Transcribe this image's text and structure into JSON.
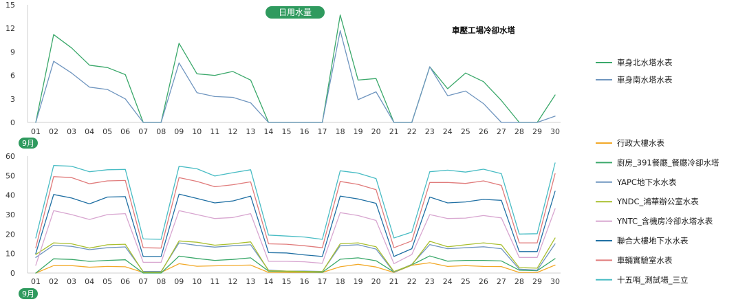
{
  "header_badge": "日用水量",
  "chart_data": [
    {
      "type": "line",
      "title": "車壓工場冷卻水塔",
      "month_label": "9月",
      "categories": [
        "01",
        "02",
        "03",
        "04",
        "05",
        "06",
        "07",
        "08",
        "09",
        "10",
        "11",
        "12",
        "13",
        "14",
        "15",
        "16",
        "17",
        "18",
        "19",
        "20",
        "21",
        "22",
        "23",
        "24",
        "25",
        "26",
        "27",
        "28",
        "29",
        "30"
      ],
      "ylim": [
        0,
        15
      ],
      "yticks": [
        0,
        3,
        6,
        9,
        12,
        15
      ],
      "series": [
        {
          "name": "車身北水塔水表",
          "color": "#3aa86a",
          "values": [
            0,
            11.2,
            9.5,
            7.3,
            7,
            6.1,
            0,
            0,
            10.1,
            6.2,
            6,
            6.5,
            5.4,
            0,
            0,
            0,
            0,
            13.7,
            5.4,
            5.6,
            0,
            0,
            7.1,
            4.3,
            6.3,
            5.2,
            2.8,
            0,
            0,
            3.5
          ]
        },
        {
          "name": "車身南水塔水表",
          "color": "#6f95bf",
          "values": [
            0,
            7.8,
            6.3,
            4.5,
            4.2,
            3,
            0,
            0,
            7.6,
            3.8,
            3.3,
            3.2,
            2.5,
            0,
            0,
            0,
            0,
            11.7,
            2.9,
            3.9,
            0,
            0,
            7.1,
            3.4,
            4,
            2.4,
            0,
            0,
            0,
            0.8
          ]
        }
      ]
    },
    {
      "type": "line",
      "title": "",
      "month_label": "9月",
      "categories": [
        "01",
        "02",
        "03",
        "04",
        "05",
        "06",
        "07",
        "08",
        "09",
        "10",
        "11",
        "12",
        "13",
        "14",
        "15",
        "16",
        "17",
        "18",
        "19",
        "20",
        "21",
        "22",
        "23",
        "24",
        "25",
        "26",
        "27",
        "28",
        "29",
        "30"
      ],
      "ylim": [
        0,
        60
      ],
      "yticks": [
        0,
        10,
        20,
        30,
        40,
        50,
        60
      ],
      "series": [
        {
          "name": "行政大樓水表",
          "color": "#f2a928",
          "values": [
            0,
            3.8,
            3.8,
            3,
            3.4,
            3.2,
            0.3,
            0.3,
            4.8,
            3.5,
            3.7,
            3.9,
            4.1,
            0.3,
            0.3,
            0.3,
            0.3,
            3.2,
            4.5,
            3.1,
            0.3,
            4,
            5.3,
            3.4,
            3.8,
            3.4,
            3.3,
            0.3,
            0.3,
            4.1
          ]
        },
        {
          "name": "廚房_391餐廳_餐廳冷卻水塔",
          "color": "#3aa86a",
          "values": [
            0,
            7.3,
            7,
            6,
            6.5,
            6.8,
            0,
            0,
            8.7,
            7.5,
            6.5,
            7,
            7.8,
            1,
            0.8,
            0.6,
            0.4,
            7.1,
            7.8,
            6.3,
            0.5,
            4.2,
            8.8,
            6.1,
            6.5,
            6.5,
            6.2,
            1.5,
            1.2,
            7.4
          ]
        },
        {
          "name": "YAPC地下水水表",
          "color": "#6f95bf",
          "values": [
            8,
            14.3,
            13.7,
            12,
            13,
            13.4,
            0.8,
            0.8,
            15.5,
            14.2,
            13.3,
            14,
            14.5,
            1.5,
            1,
            1,
            0.8,
            14,
            14.5,
            12.3,
            0.5,
            4.5,
            14.6,
            12.5,
            13,
            13.5,
            12.5,
            2,
            1.5,
            15
          ]
        },
        {
          "name": "YNDC_鴻華辦公室水表",
          "color": "#a9bf2f",
          "values": [
            9.5,
            15.5,
            15,
            12.8,
            14.5,
            14.8,
            0.5,
            0.5,
            16.5,
            15.8,
            14.3,
            15,
            16,
            1.2,
            1,
            0.8,
            0.7,
            15,
            15.5,
            13.5,
            0.8,
            4.2,
            16.3,
            13.5,
            14.5,
            15.5,
            14.5,
            2.8,
            2.5,
            18
          ]
        },
        {
          "name": "YNTC_含機房冷卻水塔水表",
          "color": "#d8a6d0",
          "values": [
            4,
            32,
            30,
            27.5,
            30,
            30.5,
            5.5,
            5.5,
            32,
            30,
            28,
            28.5,
            30.5,
            6,
            6,
            5.8,
            5,
            31,
            29.5,
            27,
            4.8,
            9.5,
            30,
            28,
            28.2,
            29.5,
            28.3,
            8,
            8,
            33
          ]
        },
        {
          "name": "聯合大樓地下水水表",
          "color": "#1f6fa3",
          "values": [
            10,
            40.3,
            38.5,
            35.5,
            39,
            39.2,
            8.5,
            8.5,
            40.5,
            38.3,
            36,
            37,
            39.5,
            10.5,
            10.3,
            9.3,
            8.5,
            39.5,
            38,
            35.8,
            8.5,
            12.5,
            39,
            36,
            36.5,
            37.8,
            37.3,
            11,
            11,
            42
          ]
        },
        {
          "name": "車輛實驗室水表",
          "color": "#e07b7b",
          "values": [
            13,
            49.5,
            49,
            45.8,
            47.3,
            47.5,
            13,
            12.8,
            49,
            47,
            44.3,
            45.3,
            46.8,
            15,
            14.8,
            14,
            13,
            47,
            45.5,
            42.8,
            13,
            16.5,
            46.5,
            46.5,
            46,
            47.3,
            45,
            15.5,
            15.5,
            51
          ]
        },
        {
          "name": "十五哨_測試場_三立",
          "color": "#48bcc4",
          "values": [
            18,
            55.2,
            54.8,
            52,
            53,
            53.2,
            17.5,
            17.3,
            54.8,
            53.5,
            49.8,
            51.5,
            53,
            19.5,
            19,
            18.5,
            17.3,
            52.5,
            51.3,
            48.5,
            18,
            21,
            52,
            52.8,
            51.8,
            53.3,
            51,
            20,
            20.2,
            56.5
          ]
        }
      ]
    }
  ]
}
